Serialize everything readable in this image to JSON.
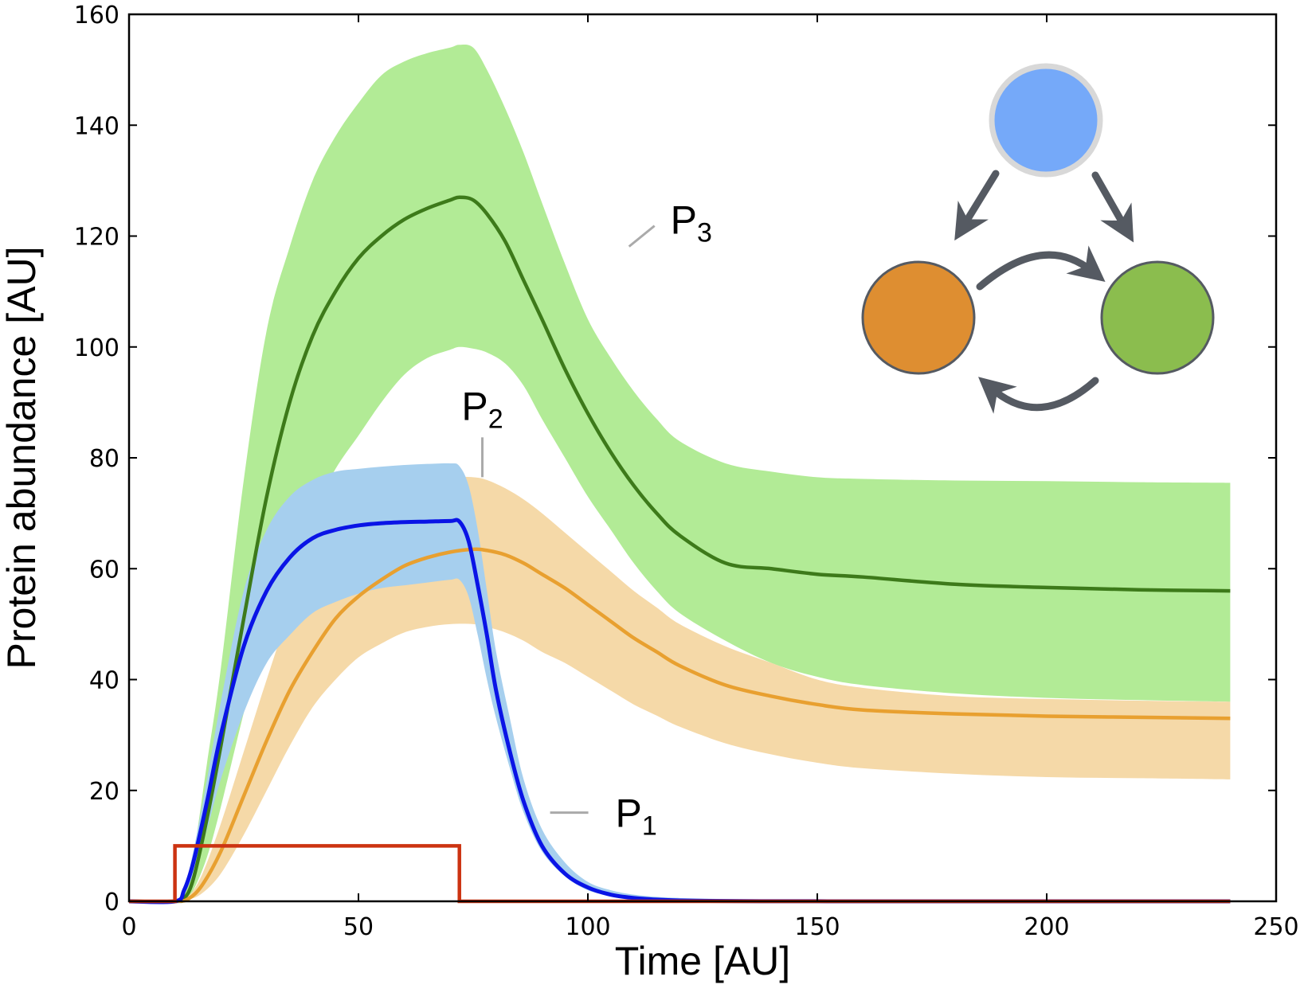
{
  "chart_data": {
    "type": "line",
    "title": "",
    "xlabel": "Time [AU]",
    "ylabel": "Protein abundance [AU]",
    "xlim": [
      0,
      250
    ],
    "ylim": [
      0,
      160
    ],
    "xticks": [
      0,
      50,
      100,
      150,
      200,
      250
    ],
    "yticks": [
      0,
      20,
      40,
      60,
      80,
      100,
      120,
      140,
      160
    ],
    "grid": false,
    "legend": "none",
    "input_pulse": {
      "color": "#cc3311",
      "x": [
        0,
        10,
        10,
        72,
        72,
        240
      ],
      "y": [
        0,
        0,
        10,
        10,
        0,
        0
      ]
    },
    "series": [
      {
        "label": "P",
        "label_sub": "3",
        "line_color": "#3d7a1a",
        "band_color": "#b2eb96",
        "x": [
          0,
          10,
          12,
          14,
          17,
          20,
          25,
          30,
          35,
          40,
          45,
          50,
          55,
          60,
          65,
          70,
          72,
          75,
          78,
          82,
          86,
          90,
          95,
          100,
          105,
          110,
          115,
          120,
          130,
          140,
          150,
          160,
          180,
          200,
          220,
          240
        ],
        "y": [
          0,
          0,
          0.5,
          4,
          15,
          28,
          51,
          73,
          90,
          102,
          110,
          116,
          120,
          123,
          125,
          126.5,
          127,
          126.5,
          124,
          119,
          112,
          105,
          96,
          88,
          81,
          75,
          70,
          66,
          61,
          60,
          59,
          58.5,
          57.2,
          56.6,
          56.2,
          56
        ],
        "lower": [
          0,
          0,
          0.3,
          2,
          8,
          17,
          34,
          50,
          60,
          70,
          78,
          84,
          90,
          95,
          98,
          99.5,
          100,
          99.7,
          99,
          97,
          93,
          87,
          80,
          73,
          67,
          61,
          56,
          52,
          47,
          43,
          40.5,
          39,
          37.5,
          36.7,
          36.3,
          36
        ],
        "upper": [
          0,
          0,
          1,
          8,
          25,
          42,
          76,
          103,
          118,
          130,
          138,
          144,
          149,
          151.5,
          153,
          154,
          154.5,
          154,
          150,
          143,
          135,
          126,
          115,
          105,
          98,
          92,
          87,
          83,
          79,
          77.5,
          76.5,
          76.2,
          75.9,
          75.8,
          75.6,
          75.5
        ]
      },
      {
        "label": "P",
        "label_sub": "2",
        "line_color": "#e8a030",
        "band_color": "#f5d9a8",
        "x": [
          0,
          10,
          13,
          16,
          20,
          25,
          30,
          35,
          40,
          45,
          50,
          55,
          60,
          65,
          70,
          75,
          78,
          82,
          86,
          90,
          95,
          100,
          105,
          110,
          115,
          120,
          130,
          140,
          150,
          160,
          180,
          200,
          220,
          240
        ],
        "y": [
          0,
          0,
          0.5,
          3,
          9,
          19,
          29,
          38,
          45,
          51,
          55,
          58,
          60.5,
          62,
          63,
          63.5,
          63.3,
          62.5,
          61,
          59,
          56.5,
          53.5,
          50.5,
          47.5,
          45,
          42.5,
          39,
          37,
          35.5,
          34.5,
          33.8,
          33.4,
          33.2,
          33
        ],
        "lower": [
          0,
          0,
          0.3,
          1.5,
          5,
          12,
          20,
          28,
          35,
          40,
          44,
          46.5,
          48.5,
          49.5,
          50,
          50,
          49.5,
          48.5,
          47,
          45,
          43,
          40.5,
          38,
          35.5,
          33.5,
          31.5,
          28.5,
          26.5,
          25,
          24,
          23,
          22.4,
          22.2,
          22
        ],
        "upper": [
          0,
          0,
          1,
          5,
          14,
          27,
          40,
          52,
          60,
          66,
          70,
          73,
          75,
          76,
          76.5,
          76.5,
          76,
          74.5,
          72.5,
          70,
          66.5,
          63,
          59.5,
          56,
          53,
          50,
          46,
          43,
          40,
          38.5,
          37,
          36.5,
          36.2,
          36
        ]
      },
      {
        "label": "P",
        "label_sub": "1",
        "line_color": "#0a14e6",
        "band_color": "#a6cfee",
        "x": [
          0,
          10,
          12,
          14,
          17,
          20,
          25,
          30,
          35,
          40,
          45,
          50,
          55,
          60,
          65,
          70,
          72,
          74,
          76,
          78,
          80,
          83,
          86,
          90,
          95,
          100,
          105,
          110,
          115,
          120,
          130,
          140,
          150,
          160,
          200,
          240
        ],
        "y": [
          0,
          0,
          2,
          7,
          18,
          30,
          46,
          56,
          62,
          65.5,
          67,
          67.8,
          68.2,
          68.4,
          68.5,
          68.6,
          68.5,
          65,
          57,
          48,
          38,
          27,
          18,
          10,
          5,
          2.5,
          1.2,
          0.6,
          0.3,
          0.15,
          0.05,
          0.02,
          0.01,
          0,
          0,
          0
        ],
        "lower": [
          0,
          0,
          1.5,
          5,
          13,
          22,
          34,
          43,
          48,
          52,
          54,
          55.5,
          56.5,
          57,
          57.5,
          58,
          58,
          55,
          48,
          40,
          33,
          24,
          16,
          9,
          4.5,
          2,
          1,
          0.5,
          0.2,
          0.1,
          0,
          0,
          0,
          0,
          0,
          0
        ],
        "upper": [
          0,
          0,
          2.5,
          9,
          22,
          36,
          56,
          67,
          73,
          76,
          77.5,
          78,
          78.4,
          78.7,
          78.9,
          79,
          78.5,
          75,
          67,
          56,
          45,
          33,
          22,
          13,
          7,
          3.5,
          2,
          1.2,
          0.8,
          0.6,
          0.4,
          0.3,
          0.2,
          0.2,
          0.1,
          0
        ]
      }
    ],
    "label_positions": [
      {
        "series": 0,
        "x": 118,
        "y": 123
      },
      {
        "series": 1,
        "x": 77,
        "y": 88
      },
      {
        "series": 2,
        "x": 106,
        "y": 16
      }
    ],
    "inset_network": {
      "nodes": [
        {
          "id": "n1",
          "fill": "#75a9f9",
          "ring": "#d8d8d8"
        },
        {
          "id": "n2",
          "fill": "#de8e31",
          "ring": "#555a62"
        },
        {
          "id": "n3",
          "fill": "#8bbd4e",
          "ring": "#555a62"
        }
      ],
      "edges": [
        {
          "from": "n1",
          "to": "n2"
        },
        {
          "from": "n1",
          "to": "n3"
        },
        {
          "from": "n2",
          "to": "n3"
        },
        {
          "from": "n3",
          "to": "n2"
        }
      ],
      "arrow_color": "#555a62"
    }
  }
}
